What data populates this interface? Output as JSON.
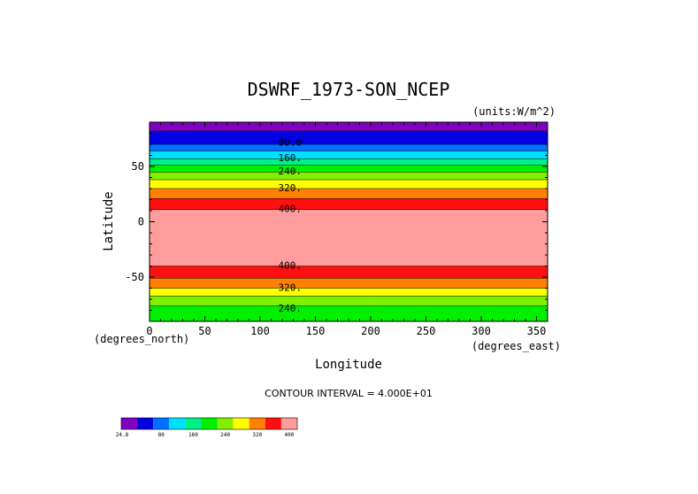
{
  "chart_data": {
    "type": "heatmap",
    "title": "DSWRF_1973-SON_NCEP",
    "units": "(units:W/m^2)",
    "xlabel": "Longitude",
    "ylabel": "Latitude",
    "x_unit_label": "(degrees_east)",
    "y_unit_label": "(degrees_north)",
    "xlim": [
      0,
      360
    ],
    "ylim": [
      -90,
      90
    ],
    "x_ticks": [
      0,
      50,
      100,
      150,
      200,
      250,
      300,
      350
    ],
    "y_ticks": [
      -50,
      0,
      50
    ],
    "contour_interval_text": "CONTOUR INTERVAL = 4.000E+01",
    "latitude_bands": [
      {
        "lat_from": 90,
        "lat_to": 82,
        "level": "24.8-40",
        "color": "#8000c0"
      },
      {
        "lat_from": 82,
        "lat_to": 70,
        "level": "40-80",
        "color": "#0000e0"
      },
      {
        "lat_from": 70,
        "lat_to": 64,
        "level": "80-120",
        "color": "#0070ff"
      },
      {
        "lat_from": 64,
        "lat_to": 57,
        "level": "120-160",
        "color": "#00e0ff"
      },
      {
        "lat_from": 57,
        "lat_to": 51,
        "level": "160-200",
        "color": "#00f08a"
      },
      {
        "lat_from": 51,
        "lat_to": 45,
        "level": "200-240",
        "color": "#00f000"
      },
      {
        "lat_from": 45,
        "lat_to": 38,
        "level": "240-280",
        "color": "#80f000"
      },
      {
        "lat_from": 38,
        "lat_to": 30,
        "level": "280-320",
        "color": "#ffff00"
      },
      {
        "lat_from": 30,
        "lat_to": 21,
        "level": "320-360",
        "color": "#ff8000"
      },
      {
        "lat_from": 21,
        "lat_to": 11,
        "level": "360-400",
        "color": "#ff1010"
      },
      {
        "lat_from": 11,
        "lat_to": -40,
        "level": ">400",
        "color": "#ff9c9c"
      },
      {
        "lat_from": -40,
        "lat_to": -51,
        "level": "360-400",
        "color": "#ff1010"
      },
      {
        "lat_from": -51,
        "lat_to": -60,
        "level": "320-360",
        "color": "#ff8000"
      },
      {
        "lat_from": -60,
        "lat_to": -67,
        "level": "280-320",
        "color": "#ffff00"
      },
      {
        "lat_from": -67,
        "lat_to": -76,
        "level": "240-280",
        "color": "#80f000"
      },
      {
        "lat_from": -76,
        "lat_to": -90,
        "level": "200-240",
        "color": "#00f000"
      }
    ],
    "contour_labels": [
      {
        "text": "80.0",
        "lon": 127,
        "lat": 72
      },
      {
        "text": "160.",
        "lon": 127,
        "lat": 58
      },
      {
        "text": "240.",
        "lon": 127,
        "lat": 46
      },
      {
        "text": "320.",
        "lon": 127,
        "lat": 31
      },
      {
        "text": "400.",
        "lon": 127,
        "lat": 12
      },
      {
        "text": "400.",
        "lon": 127,
        "lat": -39
      },
      {
        "text": "320.",
        "lon": 127,
        "lat": -59
      },
      {
        "text": "240.",
        "lon": 127,
        "lat": -78
      }
    ],
    "colorbar": {
      "colors": [
        "#8000c0",
        "#0000e0",
        "#0070ff",
        "#00e0ff",
        "#00f08a",
        "#00f000",
        "#80f000",
        "#ffff00",
        "#ff8000",
        "#ff1010",
        "#ff9c9c"
      ],
      "tick_labels": [
        "24.8",
        "80",
        "160",
        "240",
        "320",
        "400"
      ],
      "tick_positions": [
        0,
        2,
        4,
        6,
        8,
        10
      ]
    }
  }
}
